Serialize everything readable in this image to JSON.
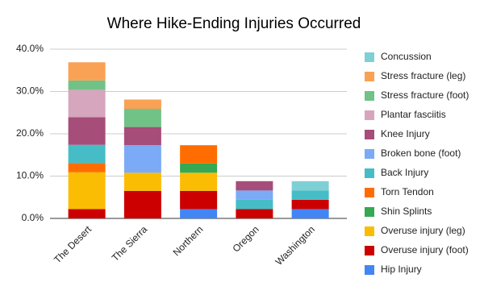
{
  "chart_data": {
    "type": "stacked-bar",
    "title": "Where Hike-Ending Injuries Occurred",
    "categories": [
      "The Desert",
      "The Sierra",
      "Northern",
      "Oregon",
      "Washington"
    ],
    "series": [
      {
        "name": "Hip Injury",
        "color": "#4285f4",
        "values": [
          0,
          0,
          2.2,
          0,
          2.2
        ]
      },
      {
        "name": "Overuse injury (foot)",
        "color": "#cc0000",
        "values": [
          2.2,
          6.5,
          4.3,
          2.2,
          2.2
        ]
      },
      {
        "name": "Overuse injury (leg)",
        "color": "#fbbc04",
        "values": [
          8.7,
          4.3,
          4.3,
          0,
          0
        ]
      },
      {
        "name": "Shin Splints",
        "color": "#34a853",
        "values": [
          0,
          0,
          2.2,
          0,
          0
        ]
      },
      {
        "name": "Torn Tendon",
        "color": "#ff6d01",
        "values": [
          2.2,
          0,
          4.3,
          0,
          0
        ]
      },
      {
        "name": "Back Injury",
        "color": "#46bdc6",
        "values": [
          4.3,
          0,
          0,
          2.2,
          2.2
        ]
      },
      {
        "name": "Broken bone (foot)",
        "color": "#7baaf7",
        "values": [
          0,
          6.5,
          0,
          2.2,
          0
        ]
      },
      {
        "name": "Knee Injury",
        "color": "#a64d79",
        "values": [
          6.5,
          4.3,
          0,
          2.2,
          0
        ]
      },
      {
        "name": "Plantar fasciitis",
        "color": "#d5a6bd",
        "values": [
          6.5,
          0,
          0,
          0,
          0
        ]
      },
      {
        "name": "Stress fracture (foot)",
        "color": "#71c287",
        "values": [
          2.2,
          4.3,
          0,
          0,
          0
        ]
      },
      {
        "name": "Stress fracture (leg)",
        "color": "#f9a155",
        "values": [
          4.3,
          2.2,
          0,
          0,
          0
        ]
      },
      {
        "name": "Concussion",
        "color": "#7ed0d5",
        "values": [
          0,
          0,
          0,
          0,
          2.2
        ]
      }
    ],
    "ylim": [
      0,
      40
    ],
    "yticks": [
      {
        "value": 0,
        "label": "0.0%"
      },
      {
        "value": 10,
        "label": "10.0%"
      },
      {
        "value": 20,
        "label": "20.0%"
      },
      {
        "value": 30,
        "label": "30.0%"
      },
      {
        "value": 40,
        "label": "40.0%"
      }
    ],
    "grid": true,
    "legend": "right"
  }
}
